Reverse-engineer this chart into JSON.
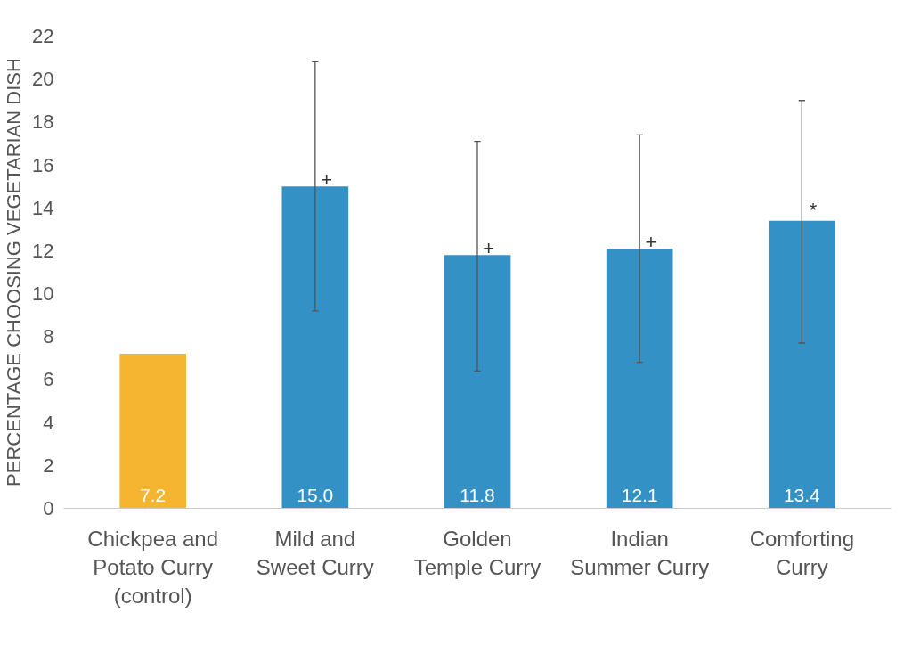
{
  "chart_data": {
    "type": "bar",
    "ylabel": "PERCENTAGE CHOOSING VEGETARIAN DISH",
    "categories": [
      "Chickpea and Potato Curry (control)",
      "Mild and Sweet Curry",
      "Golden Temple Curry",
      "Indian Summer Curry",
      "Comforting Curry"
    ],
    "values": [
      7.2,
      15.0,
      11.8,
      12.1,
      13.4
    ],
    "colors": [
      "#f6b531",
      "#3391c5",
      "#3391c5",
      "#3391c5",
      "#3391c5"
    ],
    "errors": [
      null,
      [
        9.2,
        20.8
      ],
      [
        6.4,
        17.1
      ],
      [
        6.8,
        17.4
      ],
      [
        7.7,
        19.0
      ]
    ],
    "value_labels": [
      "7.2",
      "15.0",
      "11.8",
      "12.1",
      "13.4"
    ],
    "annotations": [
      {
        "text": "+",
        "x": "Mild and Sweet Curry",
        "y": 15.0
      },
      {
        "text": "+",
        "x": "Golden Temple Curry",
        "y": 11.8
      },
      {
        "text": "+",
        "x": "Indian Summer Curry",
        "y": 12.1
      },
      {
        "text": "*",
        "x": "Comforting Curry",
        "y": 13.4
      }
    ],
    "ylim": [
      0,
      22
    ],
    "yticks": [
      0,
      2,
      4,
      6,
      8,
      10,
      12,
      14,
      16,
      18,
      20,
      22
    ],
    "grid": false
  }
}
